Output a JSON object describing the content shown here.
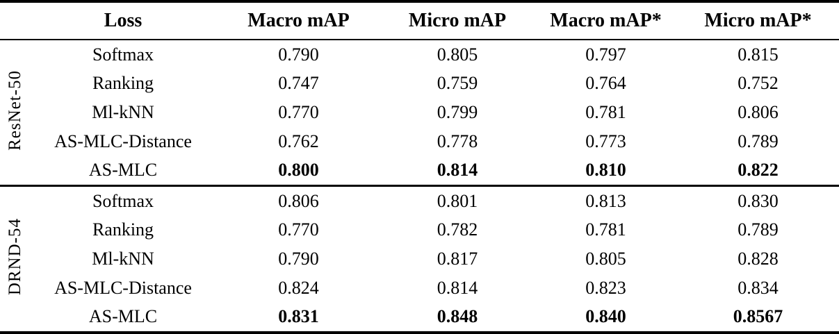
{
  "table": {
    "columns": {
      "loss": "Loss",
      "macro_map": "Macro mAP",
      "micro_map": "Micro mAP",
      "macro_map_star": "Macro mAP*",
      "micro_map_star": "Micro mAP*"
    },
    "groups": [
      {
        "name": "ResNet-50",
        "rows": [
          {
            "loss": "Softmax",
            "values": [
              "0.790",
              "0.805",
              "0.797",
              "0.815"
            ],
            "bold": false
          },
          {
            "loss": "Ranking",
            "values": [
              "0.747",
              "0.759",
              "0.764",
              "0.752"
            ],
            "bold": false
          },
          {
            "loss": "Ml-kNN",
            "values": [
              "0.770",
              "0.799",
              "0.781",
              "0.806"
            ],
            "bold": false
          },
          {
            "loss": "AS-MLC-Distance",
            "values": [
              "0.762",
              "0.778",
              "0.773",
              "0.789"
            ],
            "bold": false
          },
          {
            "loss": "AS-MLC",
            "values": [
              "0.800",
              "0.814",
              "0.810",
              "0.822"
            ],
            "bold": true
          }
        ]
      },
      {
        "name": "DRND-54",
        "rows": [
          {
            "loss": "Softmax",
            "values": [
              "0.806",
              "0.801",
              "0.813",
              "0.830"
            ],
            "bold": false
          },
          {
            "loss": "Ranking",
            "values": [
              "0.770",
              "0.782",
              "0.781",
              "0.789"
            ],
            "bold": false
          },
          {
            "loss": "Ml-kNN",
            "values": [
              "0.790",
              "0.817",
              "0.805",
              "0.828"
            ],
            "bold": false
          },
          {
            "loss": "AS-MLC-Distance",
            "values": [
              "0.824",
              "0.814",
              "0.823",
              "0.834"
            ],
            "bold": false
          },
          {
            "loss": "AS-MLC",
            "values": [
              "0.831",
              "0.848",
              "0.840",
              "0.8567"
            ],
            "bold": true
          }
        ]
      }
    ]
  },
  "colors": {
    "text": "#000000",
    "background": "#ffffff",
    "rule": "#000000"
  }
}
